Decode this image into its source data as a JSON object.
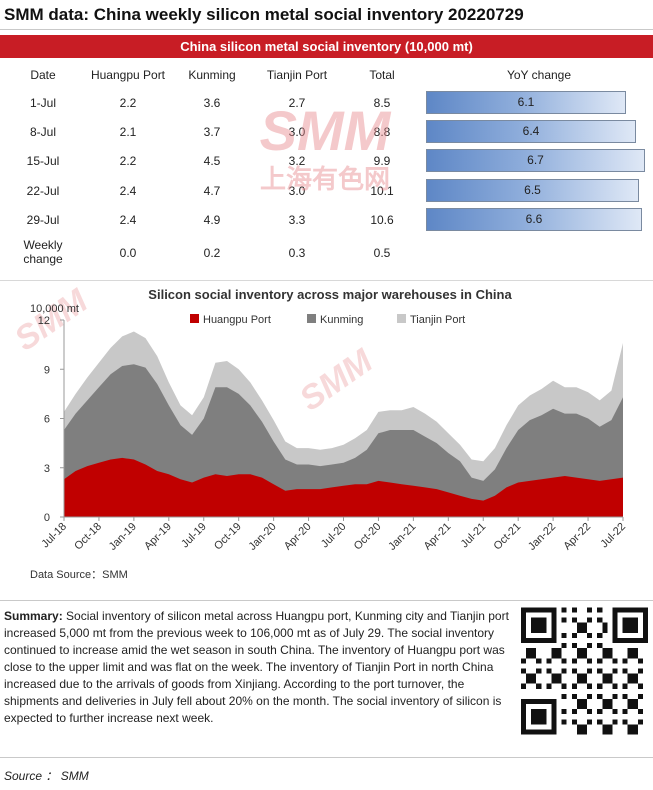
{
  "page": {
    "title": "SMM data: China weekly silicon metal social inventory 20220729",
    "source_footer": "Source ： SMM"
  },
  "colors": {
    "brand_red": "#c81d25",
    "huangpu": "#c00000",
    "kunming": "#7f7f7f",
    "tianjin": "#c8c8c8"
  },
  "table": {
    "banner": "China silicon metal social inventory (10,000 mt)",
    "headers": [
      "Date",
      "Huangpu Port",
      "Kunming",
      "Tianjin Port",
      "Total",
      "YoY change"
    ],
    "rows": [
      {
        "date": "1-Jul",
        "huangpu": "2.2",
        "kunming": "3.6",
        "tianjin": "2.7",
        "total": "8.5",
        "yoy": "6.1",
        "yoy_num": 6.1
      },
      {
        "date": "8-Jul",
        "huangpu": "2.1",
        "kunming": "3.7",
        "tianjin": "3.0",
        "total": "8.8",
        "yoy": "6.4",
        "yoy_num": 6.4
      },
      {
        "date": "15-Jul",
        "huangpu": "2.2",
        "kunming": "4.5",
        "tianjin": "3.2",
        "total": "9.9",
        "yoy": "6.7",
        "yoy_num": 6.7
      },
      {
        "date": "22-Jul",
        "huangpu": "2.4",
        "kunming": "4.7",
        "tianjin": "3.0",
        "total": "10.1",
        "yoy": "6.5",
        "yoy_num": 6.5
      },
      {
        "date": "29-Jul",
        "huangpu": "2.4",
        "kunming": "4.9",
        "tianjin": "3.3",
        "total": "10.6",
        "yoy": "6.6",
        "yoy_num": 6.6
      }
    ],
    "weekly_change": {
      "label": "Weekly change",
      "huangpu": "0.0",
      "kunming": "0.2",
      "tianjin": "0.3",
      "total": "0.5"
    }
  },
  "chart_data": {
    "type": "area",
    "stacked": true,
    "title": "Silicon social inventory across major warehouses in China",
    "ylabel": "10,000 mt",
    "ylim": [
      0,
      12
    ],
    "yticks": [
      "0",
      "3",
      "6",
      "9",
      "12"
    ],
    "grid": false,
    "legend": "top-center",
    "source": "Data Source：SMM",
    "x_tick_labels": [
      "Jul-18",
      "Oct-18",
      "Jan-19",
      "Apr-19",
      "Jul-19",
      "Oct-19",
      "Jan-20",
      "Apr-20",
      "Jul-20",
      "Oct-20",
      "Jan-21",
      "Apr-21",
      "Jul-21",
      "Oct-21",
      "Jan-22",
      "Apr-22",
      "Jul-22"
    ],
    "x": [
      "Jul-18",
      "Aug-18",
      "Sep-18",
      "Oct-18",
      "Nov-18",
      "Dec-18",
      "Jan-19",
      "Feb-19",
      "Mar-19",
      "Apr-19",
      "May-19",
      "Jun-19",
      "Jul-19",
      "Aug-19",
      "Sep-19",
      "Oct-19",
      "Nov-19",
      "Dec-19",
      "Jan-20",
      "Feb-20",
      "Mar-20",
      "Apr-20",
      "May-20",
      "Jun-20",
      "Jul-20",
      "Aug-20",
      "Sep-20",
      "Oct-20",
      "Nov-20",
      "Dec-20",
      "Jan-21",
      "Feb-21",
      "Mar-21",
      "Apr-21",
      "May-21",
      "Jun-21",
      "Jul-21",
      "Aug-21",
      "Sep-21",
      "Oct-21",
      "Nov-21",
      "Dec-21",
      "Jan-22",
      "Feb-22",
      "Mar-22",
      "Apr-22",
      "May-22",
      "Jun-22",
      "Jul-22"
    ],
    "series": [
      {
        "name": "Huangpu Port",
        "color": "#c00000",
        "values": [
          2.3,
          2.8,
          3.1,
          3.3,
          3.5,
          3.6,
          3.5,
          3.2,
          2.8,
          2.6,
          2.3,
          2.1,
          2.4,
          2.6,
          2.5,
          2.6,
          2.6,
          2.4,
          2.0,
          1.6,
          1.7,
          1.7,
          1.7,
          1.8,
          1.9,
          2.0,
          2.0,
          2.2,
          2.1,
          2.0,
          1.9,
          1.8,
          1.7,
          1.5,
          1.3,
          1.1,
          1.0,
          1.3,
          1.8,
          2.1,
          2.2,
          2.3,
          2.4,
          2.5,
          2.4,
          2.3,
          2.2,
          2.3,
          2.4
        ]
      },
      {
        "name": "Kunming",
        "color": "#7f7f7f",
        "values": [
          3.0,
          3.5,
          4.0,
          4.6,
          5.2,
          5.6,
          5.8,
          5.9,
          5.3,
          4.2,
          3.3,
          2.9,
          3.6,
          5.3,
          5.4,
          4.9,
          4.2,
          3.4,
          2.6,
          1.9,
          1.5,
          1.5,
          1.4,
          1.4,
          1.4,
          1.6,
          2.1,
          2.9,
          3.2,
          3.3,
          3.4,
          3.1,
          2.8,
          2.4,
          2.1,
          1.3,
          1.2,
          1.6,
          2.4,
          3.2,
          3.7,
          3.9,
          4.2,
          3.8,
          3.9,
          3.7,
          3.3,
          3.6,
          4.9
        ]
      },
      {
        "name": "Tianjin Port",
        "color": "#c8c8c8",
        "values": [
          1.1,
          1.2,
          1.4,
          1.5,
          1.6,
          1.8,
          2.0,
          1.8,
          1.7,
          1.4,
          1.2,
          1.2,
          1.3,
          1.5,
          1.6,
          1.5,
          1.4,
          1.3,
          1.3,
          1.1,
          1.0,
          1.0,
          1.0,
          1.0,
          1.1,
          1.2,
          1.2,
          1.3,
          1.2,
          1.2,
          1.4,
          1.4,
          1.3,
          1.2,
          1.0,
          1.1,
          1.2,
          1.3,
          1.4,
          1.5,
          1.5,
          1.6,
          1.7,
          1.6,
          1.6,
          1.6,
          1.6,
          1.8,
          3.3
        ]
      }
    ]
  },
  "summary": {
    "label": "Summary:",
    "text": " Social inventory of silicon metal across Huangpu port, Kunming city and Tianjin port increased 5,000 mt from the previous week to 106,000 mt as of July 29. The social inventory continued to increase amid the wet season in south China. The inventory of Huangpu port was close to the upper limit and was flat on the week. The inventory of Tianjin Port in north China increased due to the arrivals of goods from Xinjiang. According to the port turnover, the shipments and deliveries in July fell about 20% on the month. The social inventory of silicon is expected to further increase next week."
  },
  "watermark": {
    "logo": "SMM",
    "cn": "上海有色网"
  }
}
